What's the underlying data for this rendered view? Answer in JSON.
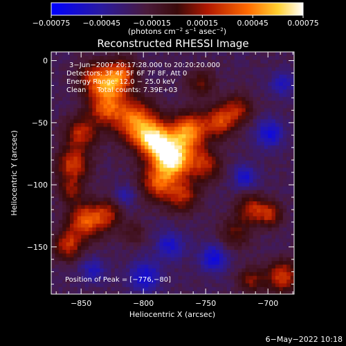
{
  "chart_data": {
    "type": "heatmap",
    "title": "Reconstructed RHESSI Image",
    "xlabel": "Heliocentric X (arcsec)",
    "ylabel": "Heliocentric Y (arcsec)",
    "xlim": [
      -874,
      -679
    ],
    "ylim": [
      -188,
      7
    ],
    "xticks": [
      -850,
      -800,
      -750,
      -700
    ],
    "xtick_labels": [
      "−850",
      "−800",
      "−750",
      "−700"
    ],
    "yticks": [
      0,
      -50,
      -100,
      -150
    ],
    "ytick_labels": [
      "0",
      "−50",
      "−100",
      "−150"
    ],
    "colorbar": {
      "range": [
        -0.00075,
        0.00075
      ],
      "ticks": [
        -0.00075,
        -0.00045,
        -0.00015,
        0.00015,
        0.00045,
        0.00075
      ],
      "tick_labels": [
        "−0.00075",
        "−0.00045",
        "−0.00015",
        "0.00015",
        "0.00045",
        "0.00075"
      ],
      "unit_main": "(photons cm",
      "unit_exp1": "−2",
      "unit_mid": " s",
      "unit_exp2": "−1",
      "unit_end": " asec",
      "unit_exp3": "−2",
      "unit_close": ")"
    },
    "annotations": [
      "3−Jun−2007 20:17:28.000 to 20:20:20.000",
      "Detectors: 3F 4F 5F 6F 7F 8F, Att 0",
      "Energy Range: 12.0 − 25.0 keV",
      "Clean     Total counts: 7.39E+03"
    ],
    "peak_label": "Position of Peak = [−776,−80]",
    "peak": [
      -776,
      -80
    ],
    "blobs": [
      {
        "x": -778,
        "y": -80,
        "s": 11,
        "a": 1.0
      },
      {
        "x": -793,
        "y": -65,
        "s": 10,
        "a": 0.85
      },
      {
        "x": -765,
        "y": -58,
        "s": 10,
        "a": 0.75
      },
      {
        "x": -808,
        "y": -50,
        "s": 12,
        "a": 0.7
      },
      {
        "x": -832,
        "y": -38,
        "s": 10,
        "a": 0.6
      },
      {
        "x": -840,
        "y": -15,
        "s": 9,
        "a": 0.55
      },
      {
        "x": -825,
        "y": -20,
        "s": 9,
        "a": 0.5
      },
      {
        "x": -818,
        "y": -10,
        "s": 8,
        "a": 0.45
      },
      {
        "x": -852,
        "y": -60,
        "s": 9,
        "a": 0.5
      },
      {
        "x": -858,
        "y": -85,
        "s": 9,
        "a": 0.55
      },
      {
        "x": -848,
        "y": -130,
        "s": 10,
        "a": 0.65
      },
      {
        "x": -862,
        "y": -150,
        "s": 8,
        "a": 0.5
      },
      {
        "x": -830,
        "y": -125,
        "s": 8,
        "a": 0.4
      },
      {
        "x": -790,
        "y": -100,
        "s": 10,
        "a": 0.55
      },
      {
        "x": -770,
        "y": -110,
        "s": 9,
        "a": 0.45
      },
      {
        "x": -752,
        "y": -85,
        "s": 9,
        "a": 0.45
      },
      {
        "x": -740,
        "y": -50,
        "s": 9,
        "a": 0.55
      },
      {
        "x": -725,
        "y": -40,
        "s": 8,
        "a": 0.4
      },
      {
        "x": -715,
        "y": -120,
        "s": 8,
        "a": 0.45
      },
      {
        "x": -700,
        "y": -125,
        "s": 7,
        "a": 0.45
      },
      {
        "x": -728,
        "y": -140,
        "s": 9,
        "a": 0.3
      },
      {
        "x": -690,
        "y": -175,
        "s": 9,
        "a": 0.55
      },
      {
        "x": -715,
        "y": -178,
        "s": 7,
        "a": 0.35
      },
      {
        "x": -755,
        "y": -20,
        "s": 8,
        "a": 0.3
      },
      {
        "x": -860,
        "y": -105,
        "s": 7,
        "a": 0.35
      },
      {
        "x": -810,
        "y": -140,
        "s": 7,
        "a": 0.2
      },
      {
        "x": -780,
        "y": -150,
        "s": 8,
        "a": -0.35
      },
      {
        "x": -800,
        "y": -175,
        "s": 9,
        "a": -0.4
      },
      {
        "x": -745,
        "y": -160,
        "s": 8,
        "a": -0.4
      },
      {
        "x": -720,
        "y": -95,
        "s": 7,
        "a": -0.35
      },
      {
        "x": -700,
        "y": -60,
        "s": 8,
        "a": -0.4
      },
      {
        "x": -690,
        "y": -20,
        "s": 7,
        "a": -0.3
      },
      {
        "x": -842,
        "y": -170,
        "s": 7,
        "a": -0.3
      },
      {
        "x": -815,
        "y": -110,
        "s": 6,
        "a": -0.25
      }
    ]
  },
  "footer": {
    "date": "6−May−2022 10:18"
  }
}
